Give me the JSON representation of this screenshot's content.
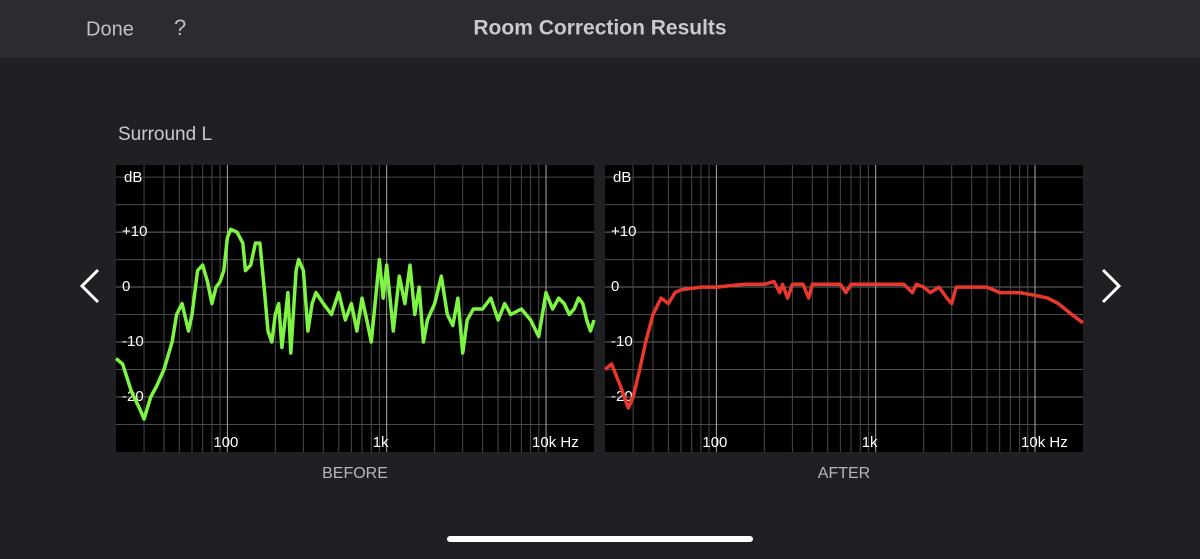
{
  "header": {
    "done": "Done",
    "help": "?",
    "title": "Room Correction Results"
  },
  "section_title": "Surround L",
  "chart_data": [
    {
      "type": "line",
      "xlabel": "BEFORE",
      "ylabel": "dB",
      "color": "#7ef542",
      "xscale": "log",
      "grid": true,
      "x": [
        20,
        22,
        25,
        28,
        30,
        33,
        36,
        40,
        45,
        48,
        52,
        57,
        60,
        65,
        70,
        75,
        80,
        85,
        90,
        95,
        100,
        105,
        115,
        125,
        130,
        140,
        150,
        160,
        170,
        180,
        190,
        200,
        210,
        220,
        230,
        240,
        250,
        270,
        280,
        300,
        320,
        340,
        360,
        400,
        450,
        500,
        550,
        600,
        650,
        700,
        750,
        800,
        900,
        950,
        1000,
        1100,
        1200,
        1300,
        1400,
        1500,
        1600,
        1700,
        1800,
        2000,
        2200,
        2400,
        2600,
        2800,
        3000,
        3200,
        3500,
        4000,
        4500,
        5000,
        5500,
        6000,
        7000,
        8000,
        9000,
        10000,
        11000,
        12000,
        13000,
        14000,
        15000,
        16000,
        17000,
        18000,
        19000,
        20000
      ],
      "values": [
        -13,
        -14,
        -19,
        -22,
        -24,
        -20,
        -18,
        -15,
        -10,
        -5,
        -3,
        -8,
        -5,
        3,
        4,
        1,
        -3,
        0,
        1,
        3,
        9,
        10.5,
        10,
        8,
        3,
        4,
        8,
        8,
        0,
        -8,
        -10,
        -5,
        -3,
        -11,
        -6,
        -1,
        -12,
        3,
        5,
        3,
        -8,
        -3,
        -1,
        -3,
        -5,
        -1,
        -6,
        -3,
        -8,
        -2,
        -6,
        -10,
        5,
        -2,
        4,
        -8,
        2,
        -3,
        4,
        -5,
        0,
        -10,
        -6,
        -3,
        2,
        -5,
        -7,
        -2,
        -12,
        -6,
        -4,
        -4,
        -2,
        -6,
        -3,
        -5,
        -4,
        -6,
        -9,
        -1,
        -4,
        -2,
        -3,
        -5,
        -4,
        -2,
        -3,
        -6,
        -8,
        -6
      ],
      "xlim": [
        20,
        20000
      ],
      "ylim": [
        -30,
        22.2
      ],
      "xticks": [
        100,
        {
          "value": 1000,
          "label": "1k"
        },
        {
          "value": 10000,
          "label": "10k Hz"
        }
      ],
      "x_minor_ticks": [
        30,
        40,
        50,
        60,
        70,
        80,
        90,
        200,
        300,
        400,
        500,
        600,
        700,
        800,
        900,
        2000,
        3000,
        4000,
        5000,
        6000,
        7000,
        8000,
        9000
      ],
      "yticks": [
        {
          "value": 10,
          "label": "+10"
        },
        0,
        -10,
        -20
      ],
      "y_minor_ticks": [
        20,
        15,
        5,
        -5,
        -15,
        -25
      ]
    },
    {
      "type": "line",
      "xlabel": "AFTER",
      "ylabel": "dB",
      "color": "#e8382c",
      "xscale": "log",
      "grid": true,
      "x": [
        20,
        22,
        25,
        28,
        30,
        33,
        36,
        40,
        45,
        50,
        55,
        60,
        80,
        100,
        150,
        200,
        230,
        250,
        260,
        280,
        300,
        350,
        380,
        400,
        500,
        600,
        650,
        700,
        800,
        1000,
        1500,
        1700,
        1800,
        2000,
        2200,
        2500,
        2800,
        3000,
        3200,
        4000,
        5000,
        6000,
        8000,
        10000,
        12000,
        14000,
        17000,
        20000
      ],
      "values": [
        -15,
        -14,
        -18,
        -22,
        -20,
        -15,
        -10,
        -5,
        -2,
        -3,
        -1,
        -0.5,
        0,
        0,
        0.5,
        0.5,
        1,
        -1,
        0.5,
        -2,
        0.5,
        0.5,
        -2,
        0.5,
        0.5,
        0.5,
        -1,
        0.5,
        0.5,
        0.5,
        0.5,
        -1,
        0.5,
        0,
        -1,
        0,
        -2,
        -3,
        0,
        0,
        0,
        -1,
        -1,
        -1.5,
        -2,
        -3,
        -5,
        -6.5
      ],
      "xlim": [
        20,
        20000
      ],
      "ylim": [
        -30,
        22.2
      ],
      "xticks": [
        100,
        {
          "value": 1000,
          "label": "1k"
        },
        {
          "value": 10000,
          "label": "10k Hz"
        }
      ],
      "x_minor_ticks": [
        30,
        40,
        50,
        60,
        70,
        80,
        90,
        200,
        300,
        400,
        500,
        600,
        700,
        800,
        900,
        2000,
        3000,
        4000,
        5000,
        6000,
        7000,
        8000,
        9000
      ],
      "yticks": [
        {
          "value": 10,
          "label": "+10"
        },
        0,
        -10,
        -20
      ],
      "y_minor_ticks": [
        20,
        15,
        5,
        -5,
        -15,
        -25
      ]
    }
  ]
}
